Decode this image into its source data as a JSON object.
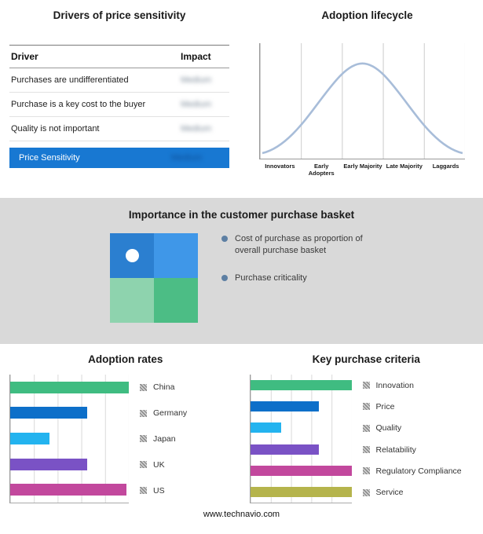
{
  "accent_colors": {
    "highlight_blue": "#1878d2",
    "band_gray": "#d9d9d9"
  },
  "drivers": {
    "title": "Drivers of price sensitivity",
    "columns": [
      "Driver",
      "Impact"
    ],
    "rows": [
      {
        "driver": "Purchases are undifferentiated",
        "impact": "Medium"
      },
      {
        "driver": "Purchase is a key cost to the buyer",
        "impact": "Medium"
      },
      {
        "driver": "Quality is not important",
        "impact": "Medium"
      }
    ],
    "summary": {
      "label": "Price Sensitivity",
      "impact": "Medium"
    },
    "note": "Impact values appear blurred in the source image"
  },
  "lifecycle": {
    "title": "Adoption lifecycle",
    "stages": [
      "Innovators",
      "Early Adopters",
      "Early Majority",
      "Late Majority",
      "Laggards"
    ],
    "curve_color": "#a8bdd9"
  },
  "basket": {
    "title": "Importance in the customer purchase basket",
    "quadrant_colors": {
      "top_left": "#2b7fd0",
      "top_right": "#3f97e8",
      "bottom_left": "#8ed3ae",
      "bottom_right": "#4cbd85"
    },
    "legend": [
      "Cost of purchase as proportion of overall purchase basket",
      "Purchase criticality"
    ]
  },
  "footer": {
    "url": "www.technavio.com"
  },
  "chart_data": [
    {
      "type": "table",
      "title": "Drivers of price sensitivity",
      "columns": [
        "Driver",
        "Impact"
      ],
      "rows": [
        [
          "Purchases are undifferentiated",
          "Medium"
        ],
        [
          "Purchase is a key cost to the buyer",
          "Medium"
        ],
        [
          "Quality is not important",
          "Medium"
        ],
        [
          "Price Sensitivity",
          "Medium"
        ]
      ]
    },
    {
      "type": "line",
      "title": "Adoption lifecycle",
      "categories": [
        "Innovators",
        "Early Adopters",
        "Early Majority",
        "Late Majority",
        "Laggards"
      ],
      "shape": "bell curve peaking over Early Majority",
      "grid": "vertical separators between the five stages"
    },
    {
      "type": "bar",
      "title": "Adoption rates",
      "orientation": "horizontal",
      "categories": [
        "China",
        "Germany",
        "Japan",
        "UK",
        "US"
      ],
      "values": [
        100,
        65,
        33,
        65,
        98
      ],
      "xlim": [
        0,
        100
      ],
      "colors": [
        "#3fbc81",
        "#0d6fc9",
        "#23b3ef",
        "#7a52c5",
        "#c2489d"
      ],
      "legend_position": "right"
    },
    {
      "type": "bar",
      "title": "Key purchase criteria",
      "orientation": "horizontal",
      "categories": [
        "Innovation",
        "Price",
        "Quality",
        "Relatability",
        "Regulatory Compliance",
        "Service"
      ],
      "values": [
        100,
        68,
        31,
        68,
        100,
        100
      ],
      "xlim": [
        0,
        100
      ],
      "colors": [
        "#3fbc81",
        "#0d6fc9",
        "#23b3ef",
        "#7a52c5",
        "#c2489d",
        "#b5b44c"
      ],
      "legend_position": "right"
    }
  ]
}
